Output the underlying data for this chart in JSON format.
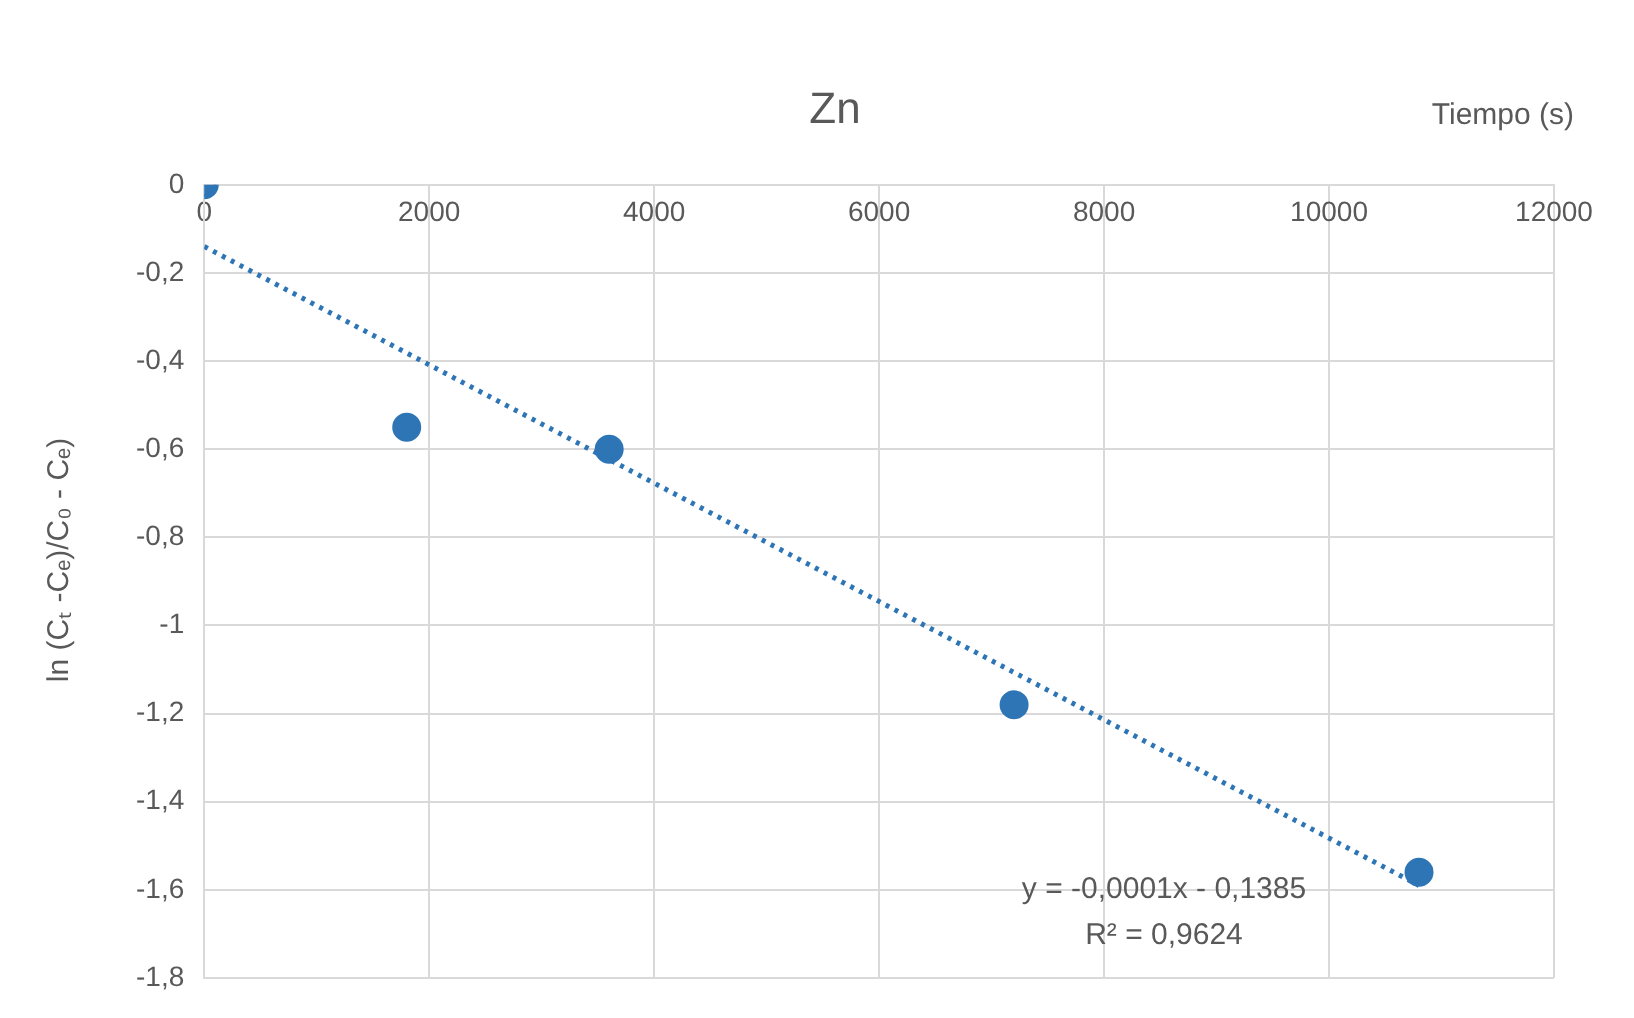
{
  "chart_data": {
    "type": "scatter",
    "title": "Zn",
    "xlabel": "Tiempo (s)",
    "ylabel": "ln (Cₜ -Cₑ)/C₀ - Cₑ)",
    "series": [
      {
        "type": "scatter",
        "color": "#2e75b6",
        "x": [
          0,
          1800,
          3600,
          7200,
          10800
        ],
        "values": [
          0,
          -0.55,
          -0.6,
          -1.18,
          -1.56
        ]
      },
      {
        "type": "line",
        "color": "#2e75b6",
        "line_style": "dotted",
        "marker": "none",
        "x": [
          0,
          10800
        ],
        "values": [
          -0.14,
          -1.59
        ]
      }
    ],
    "xlim": [
      0,
      12000
    ],
    "xticks": [
      0,
      2000,
      4000,
      6000,
      8000,
      10000,
      12000
    ],
    "ylim": [
      -1.8,
      0
    ],
    "yticks": [
      0,
      {
        "value": -0.2,
        "label": "-0,2"
      },
      {
        "value": -0.4,
        "label": "-0,4"
      },
      {
        "value": -0.6,
        "label": "-0,6"
      },
      {
        "value": -0.8,
        "label": "-0,8"
      },
      -1,
      {
        "value": -1.2,
        "label": "-1,2"
      },
      {
        "value": -1.4,
        "label": "-1,4"
      },
      {
        "value": -1.6,
        "label": "-1,6"
      },
      {
        "value": -1.8,
        "label": "-1,8"
      }
    ],
    "grid": true,
    "legend": false,
    "marker": "circle",
    "annotations": [
      "y = -0,0001x - 0,1385",
      "R² = 0,9624"
    ]
  }
}
